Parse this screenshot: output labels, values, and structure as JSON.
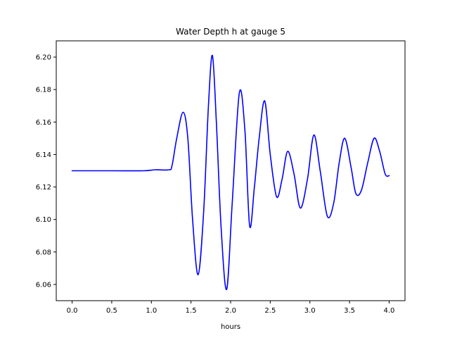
{
  "chart_data": {
    "type": "line",
    "title": "Water Depth h at gauge 5",
    "xlabel": "hours",
    "ylabel": "",
    "xlim": [
      -0.2,
      4.2
    ],
    "ylim": [
      6.05,
      6.21
    ],
    "grid": false,
    "x_ticks": [
      0.0,
      0.5,
      1.0,
      1.5,
      2.0,
      2.5,
      3.0,
      3.5,
      4.0
    ],
    "x_tick_labels": [
      "0.0",
      "0.5",
      "1.0",
      "1.5",
      "2.0",
      "2.5",
      "3.0",
      "3.5",
      "4.0"
    ],
    "y_ticks": [
      6.06,
      6.08,
      6.1,
      6.12,
      6.14,
      6.16,
      6.18,
      6.2
    ],
    "y_tick_labels": [
      "6.06",
      "6.08",
      "6.10",
      "6.12",
      "6.14",
      "6.16",
      "6.18",
      "6.20"
    ],
    "series": [
      {
        "color": "#0000ff",
        "x": [
          0.0,
          0.5,
          0.9,
          1.05,
          1.22,
          1.26,
          1.32,
          1.4,
          1.46,
          1.52,
          1.59,
          1.66,
          1.72,
          1.77,
          1.82,
          1.88,
          1.95,
          2.02,
          2.11,
          2.18,
          2.24,
          2.3,
          2.36,
          2.43,
          2.5,
          2.58,
          2.65,
          2.72,
          2.8,
          2.88,
          2.97,
          3.05,
          3.13,
          3.22,
          3.3,
          3.37,
          3.44,
          3.52,
          3.58,
          3.65,
          3.73,
          3.81,
          3.88,
          3.95,
          4.0
        ],
        "y": [
          6.13,
          6.13,
          6.13,
          6.1306,
          6.1306,
          6.133,
          6.15,
          6.166,
          6.15,
          6.1,
          6.066,
          6.105,
          6.17,
          6.201,
          6.16,
          6.095,
          6.057,
          6.11,
          6.178,
          6.155,
          6.096,
          6.12,
          6.15,
          6.173,
          6.14,
          6.114,
          6.125,
          6.142,
          6.128,
          6.107,
          6.125,
          6.152,
          6.13,
          6.102,
          6.11,
          6.135,
          6.15,
          6.132,
          6.116,
          6.118,
          6.135,
          6.15,
          6.142,
          6.128,
          6.127
        ]
      }
    ]
  }
}
